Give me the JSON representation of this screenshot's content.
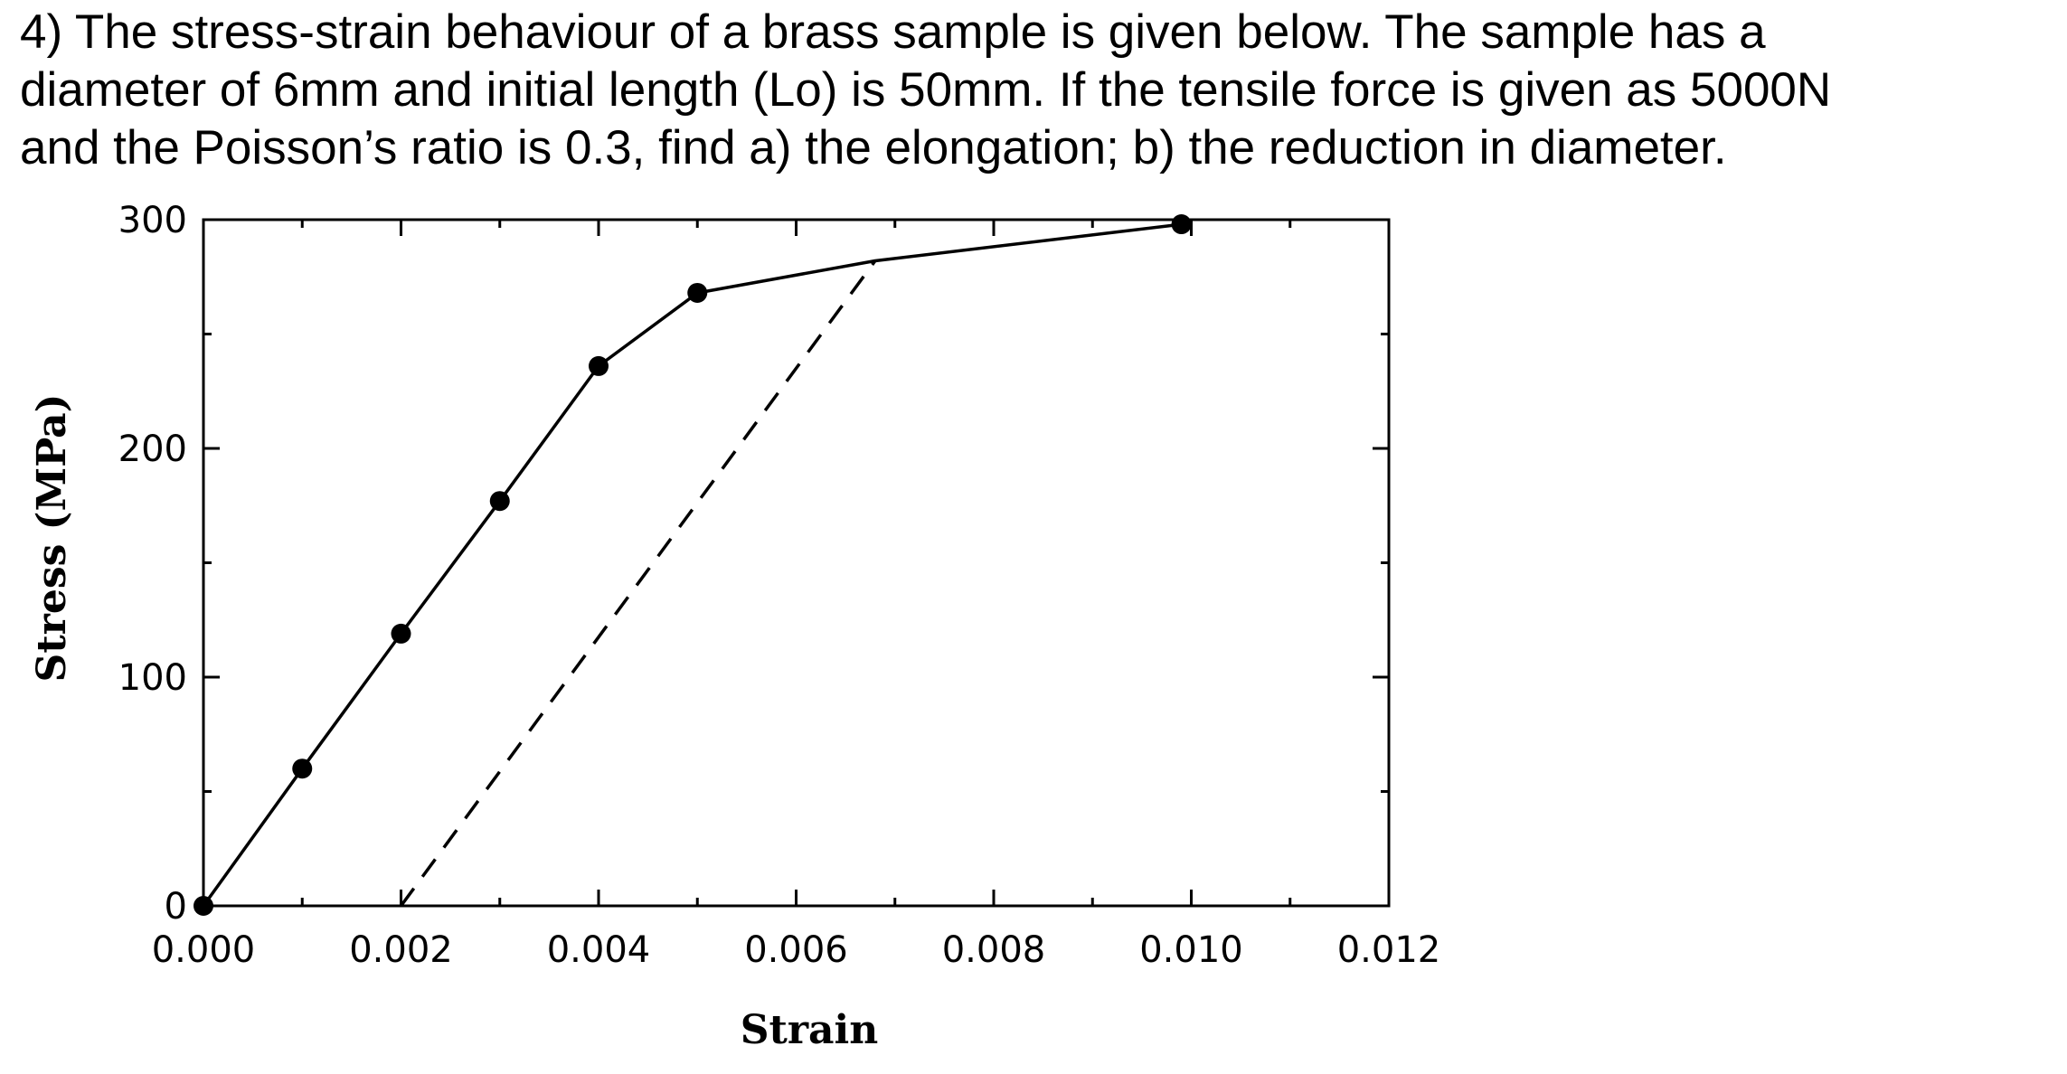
{
  "question": {
    "lines": [
      "4) The stress-strain behaviour of a brass sample is given below. The sample has a",
      "diameter of 6mm and initial length (Lo) is 50mm. If the tensile force is given as 5000N",
      "and the Poisson’s ratio is 0.3, find a) the elongation; b) the reduction in diameter."
    ]
  },
  "chart_data": {
    "type": "line",
    "title": "",
    "xlabel": "Strain",
    "ylabel": "Stress (MPa)",
    "xlim": [
      0,
      0.012
    ],
    "ylim": [
      0,
      300
    ],
    "x_ticks": [
      0,
      0.002,
      0.004,
      0.006,
      0.008,
      0.01,
      0.012
    ],
    "x_tick_labels": [
      "0.000",
      "0.002",
      "0.004",
      "0.006",
      "0.008",
      "0.010",
      "0.012"
    ],
    "y_ticks": [
      0,
      100,
      200,
      300
    ],
    "y_tick_labels": [
      "0",
      "100",
      "200",
      "300"
    ],
    "grid": false,
    "legend": "none",
    "series": [
      {
        "style": "solid",
        "color": "#000000",
        "marker": "filled-circle",
        "x": [
          0,
          0.001,
          0.002,
          0.003,
          0.004,
          0.005,
          0.0068,
          0.0099
        ],
        "y": [
          0,
          60,
          119,
          177,
          236,
          268,
          282,
          298
        ],
        "marker_indices": [
          0,
          1,
          2,
          3,
          4,
          5,
          7
        ]
      },
      {
        "style": "dashed",
        "color": "#000000",
        "x": [
          0.002,
          0.0068
        ],
        "y": [
          0,
          282
        ]
      }
    ]
  }
}
